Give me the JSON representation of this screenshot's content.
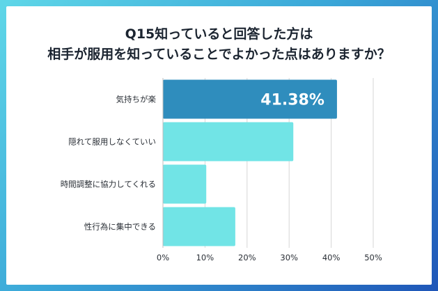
{
  "title_line1": "Q15知っていると回答した方は",
  "title_line2": "相手が服用を知っていることでよかった点はありますか？",
  "chart_data": {
    "type": "bar",
    "orientation": "horizontal",
    "categories": [
      "気持ちが楽",
      "隠れて服用しなくていい",
      "時間調整に協力してくれる",
      "性行為に集中できる"
    ],
    "values": [
      41.38,
      31.0,
      10.3,
      17.2
    ],
    "data_labels": [
      "41.38%",
      "",
      "",
      ""
    ],
    "xlim": [
      0,
      50
    ],
    "ticks": [
      "0%",
      "10%",
      "20%",
      "30%",
      "40%",
      "50%"
    ],
    "grid": true,
    "colors": {
      "highlight": "#2f8dbd",
      "default": "#71e4e6",
      "grid": "#d6d6d6"
    }
  }
}
